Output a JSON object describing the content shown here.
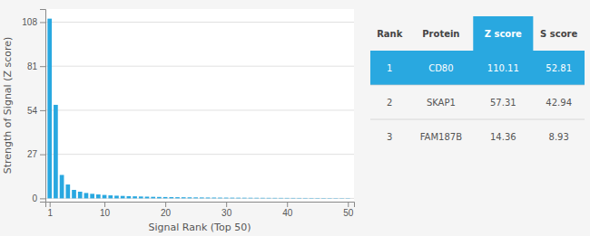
{
  "chart_data": {
    "type": "bar",
    "x": [
      1,
      2,
      3,
      4,
      5,
      6,
      7,
      8,
      9,
      10,
      11,
      12,
      13,
      14,
      15,
      16,
      17,
      18,
      19,
      20,
      21,
      22,
      23,
      24,
      25,
      26,
      27,
      28,
      29,
      30,
      31,
      32,
      33,
      34,
      35,
      36,
      37,
      38,
      39,
      40,
      41,
      42,
      43,
      44,
      45,
      46,
      47,
      48,
      49,
      50
    ],
    "values": [
      110.11,
      57.31,
      14.36,
      8.5,
      5.2,
      4.1,
      3.3,
      2.8,
      2.4,
      2.1,
      1.85,
      1.65,
      1.5,
      1.35,
      1.25,
      1.15,
      1.05,
      0.95,
      0.88,
      0.82,
      0.76,
      0.71,
      0.67,
      0.63,
      0.59,
      0.55,
      0.52,
      0.49,
      0.46,
      0.44,
      0.42,
      0.4,
      0.38,
      0.36,
      0.34,
      0.32,
      0.3,
      0.29,
      0.28,
      0.27,
      0.26,
      0.25,
      0.24,
      0.23,
      0.22,
      0.21,
      0.2,
      0.19,
      0.18,
      0.17
    ],
    "color": "#29a8e0",
    "x_label": "Signal Rank (Top 50)",
    "y_label": "Strength of Signal (Z score)",
    "xlim": [
      0.3,
      51
    ],
    "xticks": [
      1,
      10,
      20,
      30,
      40,
      50
    ],
    "ylim": [
      -2,
      116
    ],
    "yticks": [
      0,
      27,
      54,
      81,
      108
    ],
    "grid": true,
    "table": {
      "columns": [
        "Rank",
        "Protein",
        "Z score",
        "S score"
      ],
      "rows": [
        [
          "1",
          "CD80",
          "110.11",
          "52.81"
        ],
        [
          "2",
          "SKAP1",
          "57.31",
          "42.94"
        ],
        [
          "3",
          "FAM187B",
          "14.36",
          "8.93"
        ]
      ]
    }
  }
}
